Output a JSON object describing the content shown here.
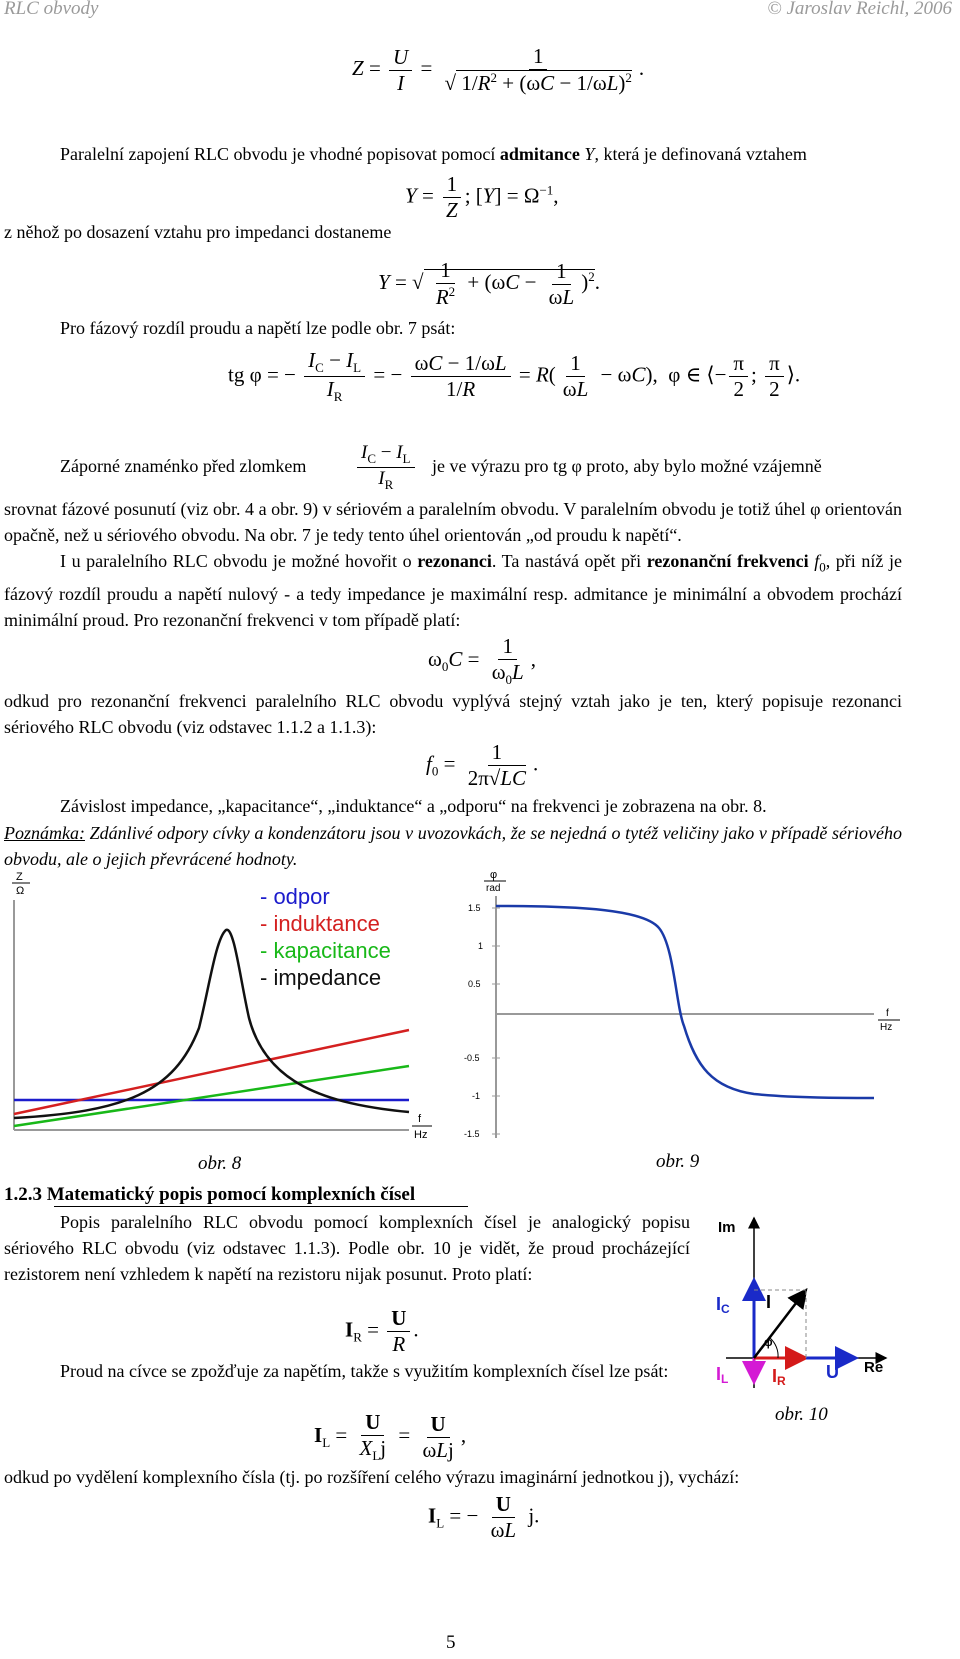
{
  "header": {
    "left": "RLC obvody",
    "right": "© Jaroslav Reichl, 2006"
  },
  "text": {
    "p1_a": "Paralelní zapojení RLC obvodu je vhodné popisovat pomocí ",
    "p1_b": "admitance",
    "p1_c": " Y",
    "p1_d": ", která je definovaná vztahem",
    "p2": "z něhož po dosazení vztahu pro impedanci dostaneme",
    "p3": "Pro fázový rozdíl proudu a napětí lze podle obr. 7 psát:",
    "p4_a": "Záporné znaménko před zlomkem",
    "p4_b": "je ve výrazu pro tg φ proto, aby bylo možné vzájemně",
    "p5": "srovnat fázové posunutí (viz obr. 4 a obr. 9) v sériovém a paralelním obvodu. V paralelním obvodu je totiž úhel φ orientován opačně, než u sériového obvodu. Na obr. 7 je tedy tento úhel orientován „od proudu k napětí“.",
    "p6_a": "I u paralelního RLC obvodu je možné hovořit o ",
    "p6_b": "rezonanci",
    "p6_c": ". Ta nastává opět při ",
    "p6_d": "rezonanční frekvenci",
    "p6_e": " f",
    "p6_f": ", při níž je fázový rozdíl proudu a napětí nulový - a tedy impedance je maximální resp. admitance je minimální a obvodem prochází minimální proud. Pro rezonanční frekvenci v tom případě platí:",
    "p7": "odkud pro rezonanční frekvenci paralelního RLC obvodu vyplývá stejný vztah jako je ten, který popisuje rezonanci sériového RLC obvodu (viz odstavec 1.1.2 a 1.1.3):",
    "p8": "Závislost impedance, „kapacitance“, „induktance“ a „odporu“ na frekvenci je zobrazena na obr. 8.",
    "note_label": "Poznámka:",
    "note_text": " Zdánlivé odpory cívky a kondenzátoru jsou v uvozovkách, že se nejedná o tytéž veličiny jako v případě sériového obvodu, ale o jejich převrácené hodnoty.",
    "section": "1.2.3 Matematický popis pomocí komplexních čísel",
    "p9": "Popis paralelního RLC obvodu pomocí komplexních čísel je analogický popisu sériového RLC obvodu (viz odstavec 1.1.3). Podle obr. 10 je vidět, že proud procházející rezistorem není vzhledem k napětí na rezistoru nijak posunut. Proto platí:",
    "p10": "Proud na cívce se zpožďuje za napětím, takže s využitím komplexních čísel lze psát:",
    "p11": "odkud po vydělení komplexního čísla (tj. po rozšíření celého výrazu imaginární jednotkou j), vychází:",
    "page_num": "5"
  },
  "captions": {
    "fig8": "obr. 8",
    "fig9": "obr. 9",
    "fig10": "obr. 10"
  },
  "fig8": {
    "ylabel_top": "Z",
    "ylabel_bot": "Ω",
    "xlabel_top": "f",
    "xlabel_bot": "Hz",
    "legend": [
      {
        "label": "- odpor",
        "color": "#1c1ccc"
      },
      {
        "label": "- induktance",
        "color": "#d42020"
      },
      {
        "label": "- kapacitance",
        "color": "#18b818"
      },
      {
        "label": "- impedance",
        "color": "#111111"
      }
    ]
  },
  "fig9": {
    "ylabel_top": "φ",
    "ylabel_bot": "rad",
    "xlabel_top": "f",
    "xlabel_bot": "Hz",
    "ticks": [
      "1.5",
      "1",
      "0.5",
      "-0.5",
      "-1",
      "-1.5"
    ],
    "color": "#1a3aa8"
  },
  "fig10": {
    "im": "Im",
    "re": "Re",
    "ic": "I",
    "ic_sub": "C",
    "i": "I",
    "il": "I",
    "il_sub": "L",
    "ir": "I",
    "ir_sub": "R",
    "u": "U",
    "phi": "φ",
    "color_c": "#1a2ac8",
    "color_l": "#d41ad4",
    "color_r": "#d41a1a",
    "color_u": "#1a2ac8"
  }
}
